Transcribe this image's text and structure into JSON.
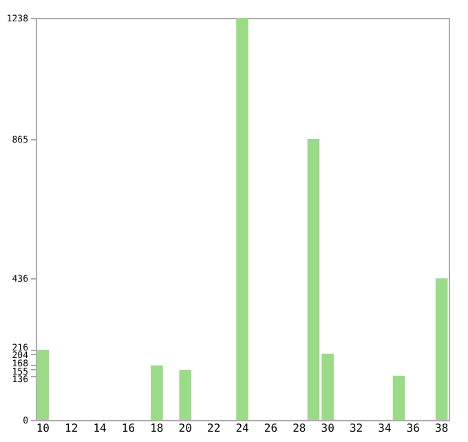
{
  "chart_data": {
    "type": "bar",
    "categories": [
      "10",
      null,
      "12",
      null,
      "14",
      null,
      "16",
      null,
      "18",
      null,
      "20",
      null,
      "22",
      null,
      "24",
      null,
      "26",
      null,
      "28",
      null,
      "30",
      null,
      "32",
      null,
      "34",
      null,
      "36",
      null,
      "38"
    ],
    "values": [
      216,
      0,
      0,
      0,
      0,
      0,
      0,
      0,
      168,
      0,
      155,
      0,
      0,
      0,
      1238,
      0,
      0,
      0,
      0,
      865,
      204,
      0,
      0,
      0,
      0,
      136,
      0,
      0,
      436
    ],
    "color": "#9adb87",
    "ylim": [
      0,
      1238
    ],
    "yticks": [
      0,
      136,
      155,
      168,
      204,
      216,
      436,
      865,
      1238
    ],
    "grid": false
  }
}
